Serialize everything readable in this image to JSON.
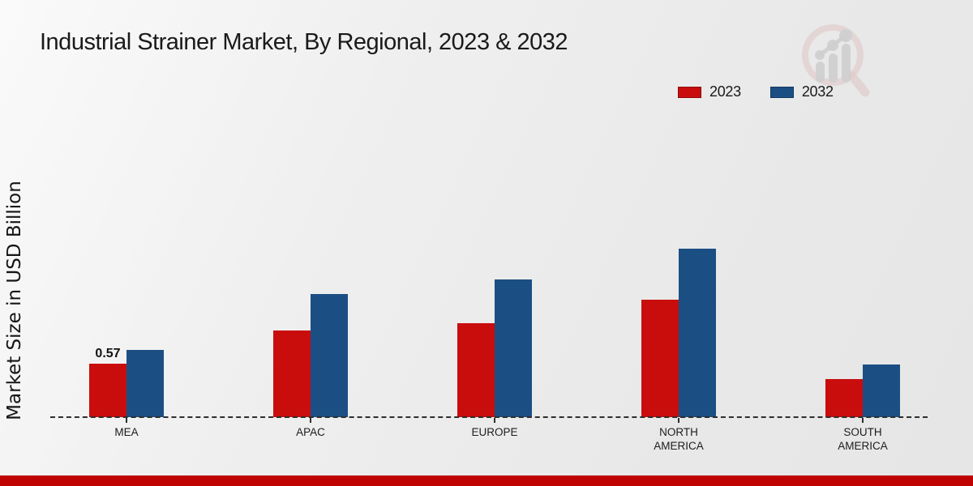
{
  "title": "Industrial Strainer Market, By Regional, 2023 & 2032",
  "chart_data": {
    "type": "bar",
    "title": "Industrial Strainer Market, By Regional, 2023 & 2032",
    "ylabel": "Market Size in USD Billion",
    "xlabel": "",
    "categories": [
      "MEA",
      "APAC",
      "EUROPE",
      "NORTH AMERICA",
      "SOUTH AMERICA"
    ],
    "series": [
      {
        "name": "2023",
        "color": "#c90d0d",
        "values": [
          0.57,
          0.92,
          1.0,
          1.25,
          0.41
        ]
      },
      {
        "name": "2032",
        "color": "#1b4f84",
        "values": [
          0.72,
          1.31,
          1.47,
          1.8,
          0.56
        ]
      }
    ],
    "annotations": [
      {
        "category_index": 0,
        "series_index": 0,
        "text": "0.57"
      }
    ],
    "ylim": [
      0,
      2.0
    ],
    "grid": false,
    "legend_position": "top-right",
    "baseline_style": "dashed"
  },
  "legend": {
    "items": [
      {
        "label": "2023",
        "color": "#c90d0d"
      },
      {
        "label": "2032",
        "color": "#1b4f84"
      }
    ]
  },
  "watermark": {
    "name": "market-research-magnifier-logo",
    "ring_color": "#dcb9b9",
    "bar_color": "#c7c7c7"
  },
  "footer": {
    "accent_color": "#bf0303"
  }
}
